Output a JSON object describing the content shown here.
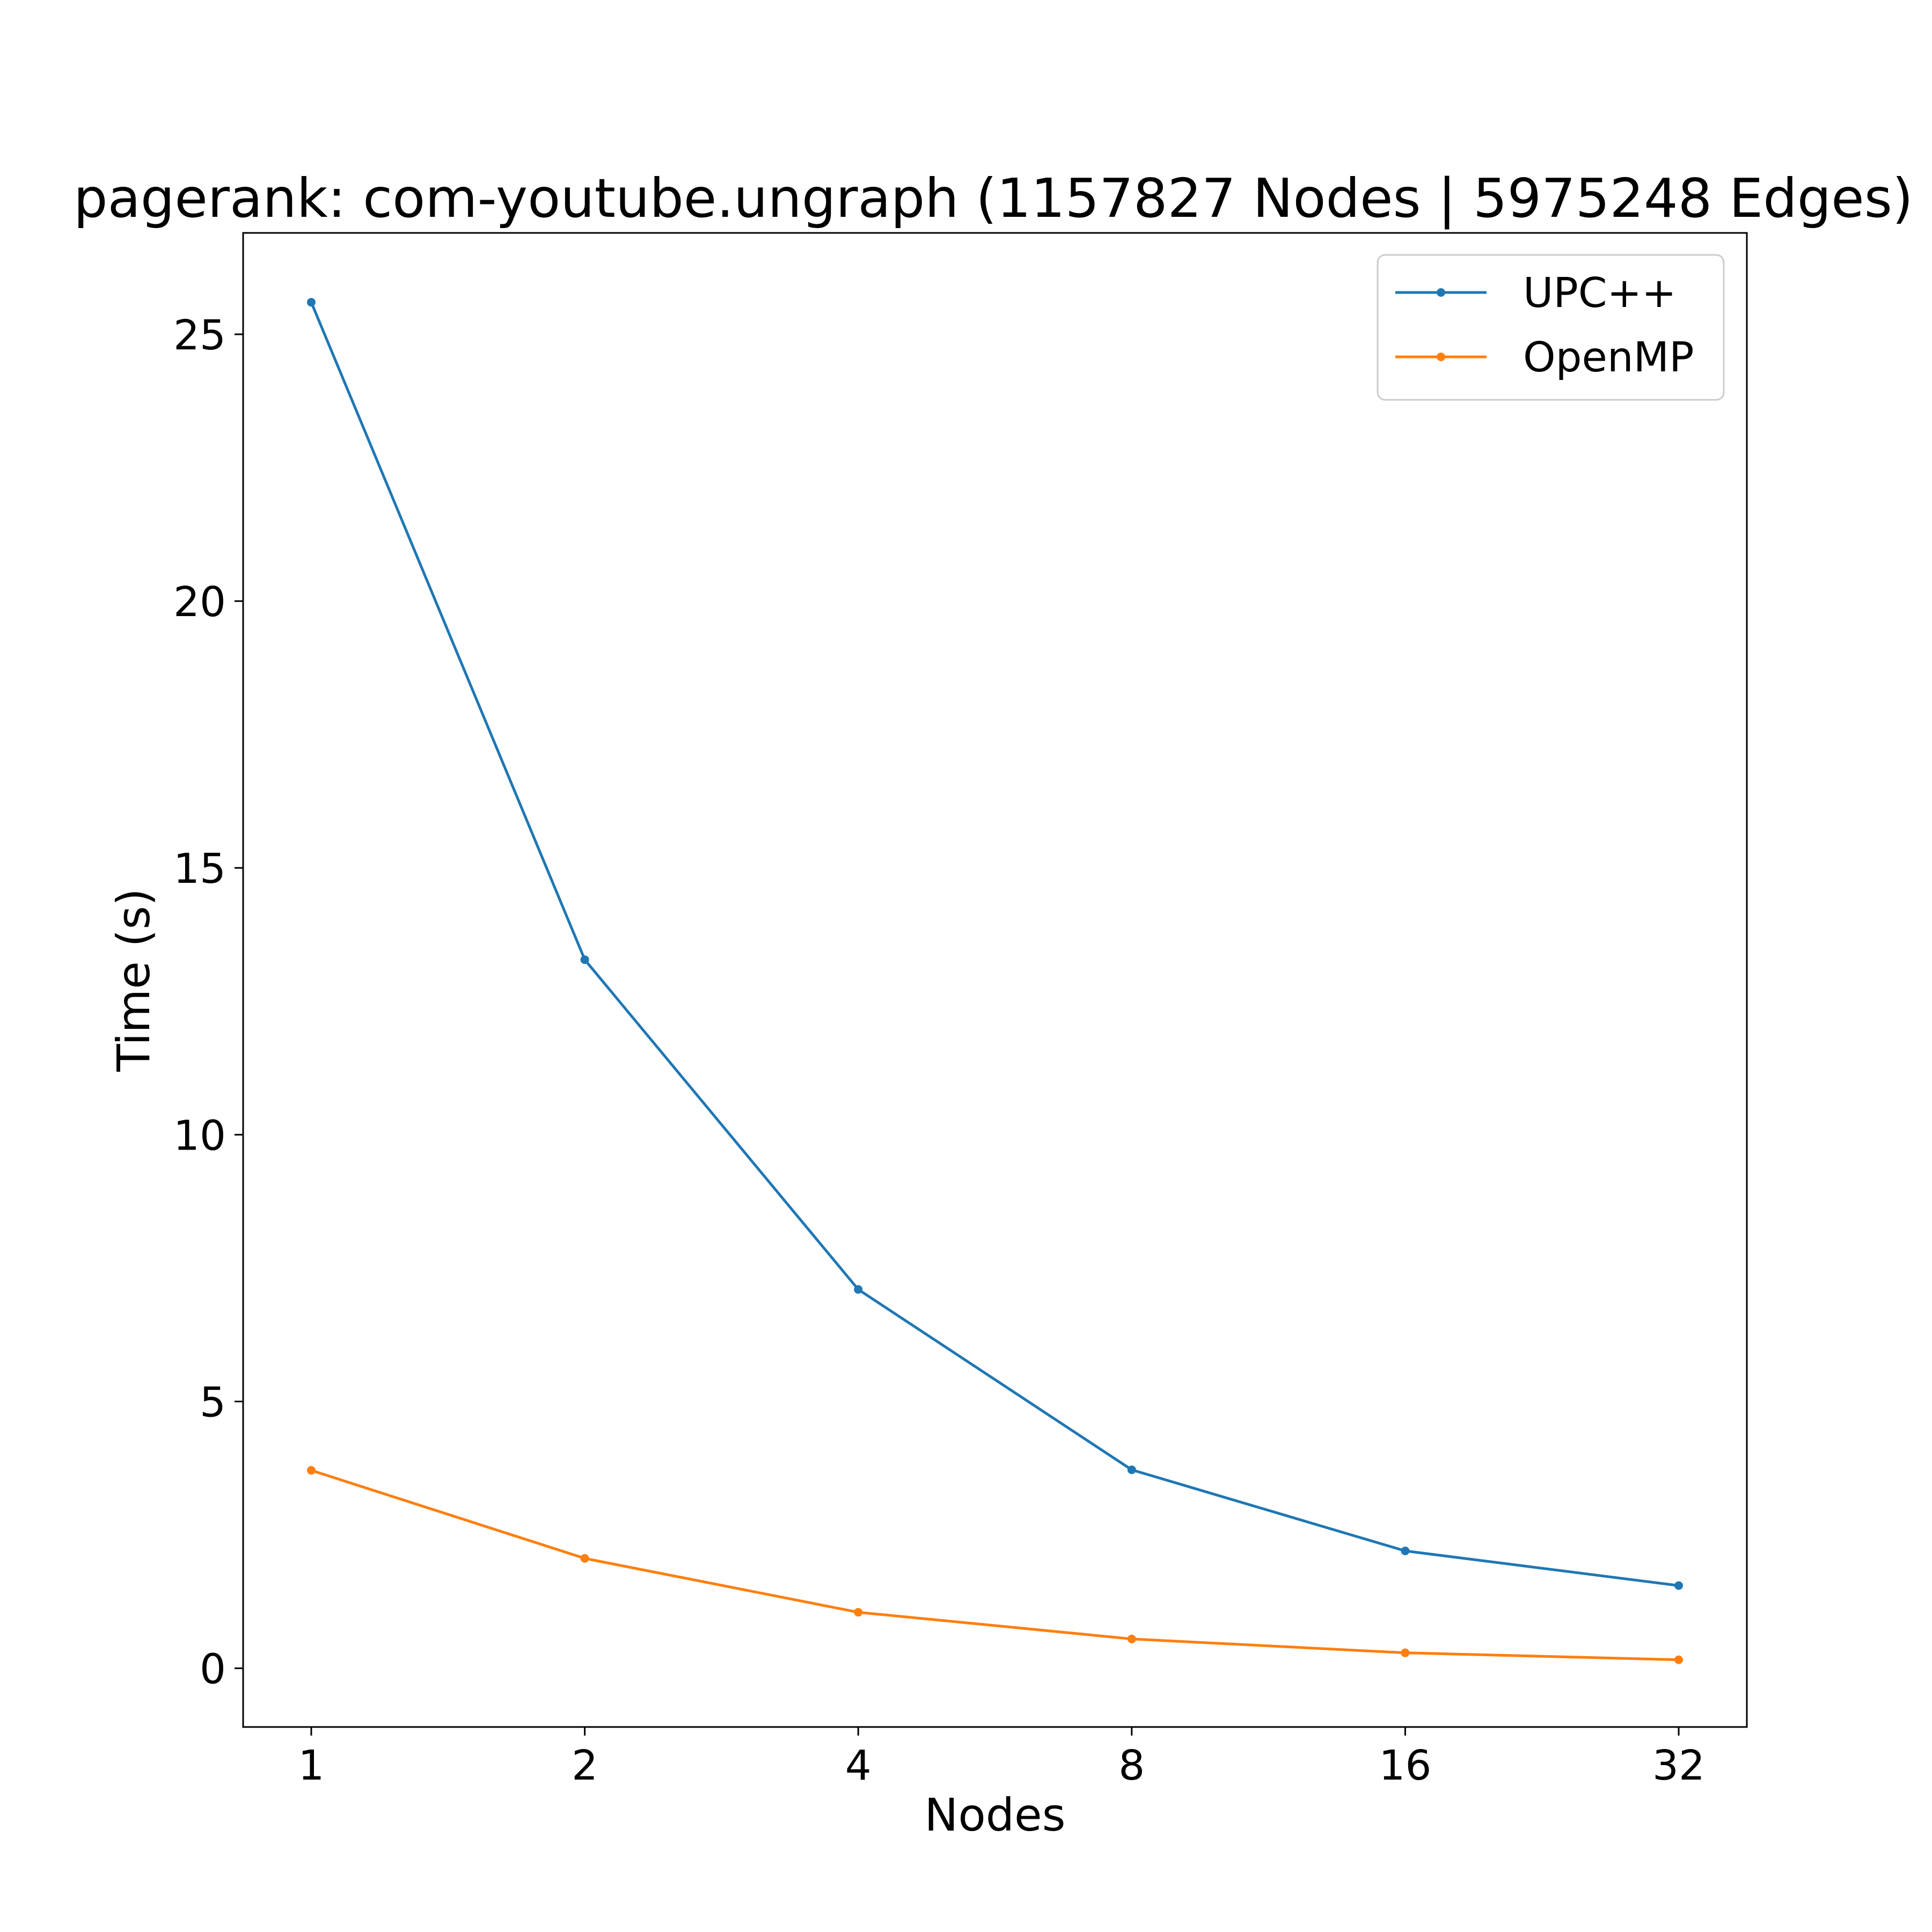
{
  "chart_data": {
    "type": "line",
    "title": "pagerank: com-youtube.ungraph (1157827 Nodes | 5975248 Edges)",
    "xlabel": "Nodes",
    "ylabel": "Time (s)",
    "x_scale": "log2",
    "categories": [
      "1",
      "2",
      "4",
      "8",
      "16",
      "32"
    ],
    "x": [
      1,
      2,
      4,
      8,
      16,
      32
    ],
    "ylim": [
      -1.1,
      26.9
    ],
    "yticks": [
      0,
      5,
      10,
      15,
      20,
      25
    ],
    "yticklabels": [
      "0",
      "5",
      "10",
      "15",
      "20",
      "25"
    ],
    "grid": false,
    "legend_position": "top-right",
    "series": [
      {
        "name": "UPC++",
        "color": "#1f77b4",
        "marker": "dot",
        "values": [
          25.6,
          13.28,
          7.1,
          3.72,
          2.2,
          1.55
        ]
      },
      {
        "name": "OpenMP",
        "color": "#ff7f0e",
        "marker": "dot",
        "values": [
          3.71,
          2.06,
          1.05,
          0.55,
          0.29,
          0.16
        ]
      }
    ]
  }
}
